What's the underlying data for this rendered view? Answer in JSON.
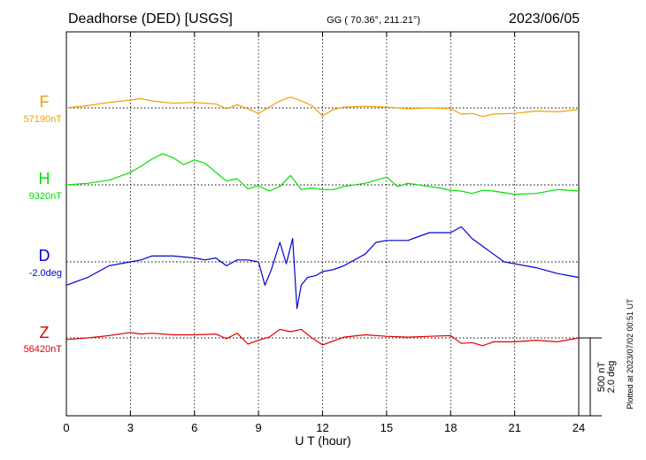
{
  "header": {
    "station": "Deadhorse (DED)  [USGS]",
    "coords": "GG ( 70.36°, 211.21°)",
    "date": "2023/06/05"
  },
  "footer": {
    "plotted": "Plotted at 2023/07/02 00:51 UT"
  },
  "scale_bar": {
    "label1": "500 nT",
    "label2": "2.0 deg"
  },
  "chart_data": {
    "type": "line",
    "xlabel": "U T (hour)",
    "xlim": [
      0,
      24
    ],
    "xticks": [
      0,
      3,
      6,
      9,
      12,
      15,
      18,
      21,
      24
    ],
    "xtick_labels": [
      "0",
      "3",
      "6",
      "9",
      "12",
      "15",
      "18",
      "21",
      "24"
    ],
    "grid": "vertical dotted every 3 hours",
    "series": [
      {
        "name": "F",
        "baseline_label": "57190nT",
        "color": "#f0a000",
        "x": [
          0,
          1,
          2,
          3,
          3.5,
          4,
          5,
          6,
          7,
          7.5,
          8,
          8.5,
          9,
          9.5,
          10,
          10.5,
          11,
          11.5,
          12,
          12.5,
          13,
          14,
          15,
          16,
          17,
          18,
          18.5,
          19,
          19.5,
          20,
          21,
          22,
          23,
          24
        ],
        "y": [
          0,
          15,
          35,
          50,
          60,
          45,
          30,
          35,
          25,
          -5,
          20,
          -5,
          -35,
          5,
          45,
          70,
          45,
          15,
          -50,
          -10,
          5,
          10,
          5,
          -5,
          0,
          -5,
          -40,
          -35,
          -55,
          -40,
          -35,
          -20,
          -25,
          -10
        ]
      },
      {
        "name": "H",
        "baseline_label": "9320nT",
        "color": "#00e000",
        "x": [
          0,
          1,
          2,
          3,
          3.5,
          4,
          4.5,
          5,
          5.5,
          6,
          6.5,
          7,
          7.5,
          8,
          8.5,
          9,
          9.5,
          10,
          10.5,
          11,
          11.5,
          12,
          12.5,
          13,
          14,
          15,
          15.5,
          16,
          17,
          17.5,
          18,
          18.5,
          19,
          19.5,
          20,
          21,
          22,
          23,
          24
        ],
        "y": [
          0,
          10,
          30,
          80,
          120,
          165,
          200,
          175,
          130,
          160,
          140,
          80,
          25,
          40,
          -25,
          -5,
          -40,
          -10,
          60,
          -30,
          -20,
          -30,
          -30,
          -10,
          10,
          50,
          -10,
          10,
          -10,
          -20,
          -35,
          -40,
          -55,
          -35,
          -40,
          -60,
          -55,
          -30,
          -40
        ]
      },
      {
        "name": "D",
        "baseline_label": "-2.0deg",
        "color": "#0000d0",
        "x": [
          0,
          1,
          2,
          3,
          3.5,
          4,
          5,
          6,
          6.5,
          7,
          7.5,
          8,
          8.5,
          9,
          9.3,
          9.6,
          10,
          10.3,
          10.6,
          10.8,
          11,
          11.3,
          11.7,
          12,
          12.5,
          13,
          14,
          14.5,
          15,
          16,
          17,
          18,
          18.5,
          19,
          19.5,
          20,
          20.5,
          21,
          22,
          23,
          24
        ],
        "y": [
          -0.6,
          -0.4,
          -0.1,
          0.0,
          0.05,
          0.15,
          0.15,
          0.1,
          0.05,
          0.1,
          -0.1,
          0.05,
          0.05,
          0.0,
          -0.6,
          -0.2,
          0.5,
          -0.05,
          0.6,
          -1.2,
          -0.6,
          -0.4,
          -0.35,
          -0.25,
          -0.2,
          -0.1,
          0.2,
          0.5,
          0.55,
          0.55,
          0.75,
          0.75,
          0.9,
          0.6,
          0.4,
          0.2,
          0.0,
          -0.05,
          -0.15,
          -0.3,
          -0.4
        ]
      },
      {
        "name": "Z",
        "baseline_label": "56420nT",
        "color": "#e00000",
        "x": [
          0,
          1,
          2,
          3,
          3.5,
          4,
          5,
          6,
          7,
          7.5,
          8,
          8.5,
          9,
          9.5,
          10,
          10.5,
          11,
          11.5,
          12,
          12.5,
          13,
          14,
          15,
          16,
          17,
          18,
          18.5,
          19,
          19.5,
          20,
          21,
          22,
          23,
          24
        ],
        "y": [
          -10,
          0,
          15,
          35,
          25,
          30,
          20,
          20,
          25,
          -5,
          30,
          -40,
          -15,
          5,
          55,
          40,
          55,
          0,
          -45,
          -20,
          5,
          20,
          10,
          5,
          10,
          15,
          -35,
          -30,
          -50,
          -25,
          -25,
          -15,
          -25,
          0
        ]
      }
    ],
    "scale_bar_units": {
      "F": 500,
      "H": 500,
      "D": 2.0,
      "Z": 500
    }
  }
}
